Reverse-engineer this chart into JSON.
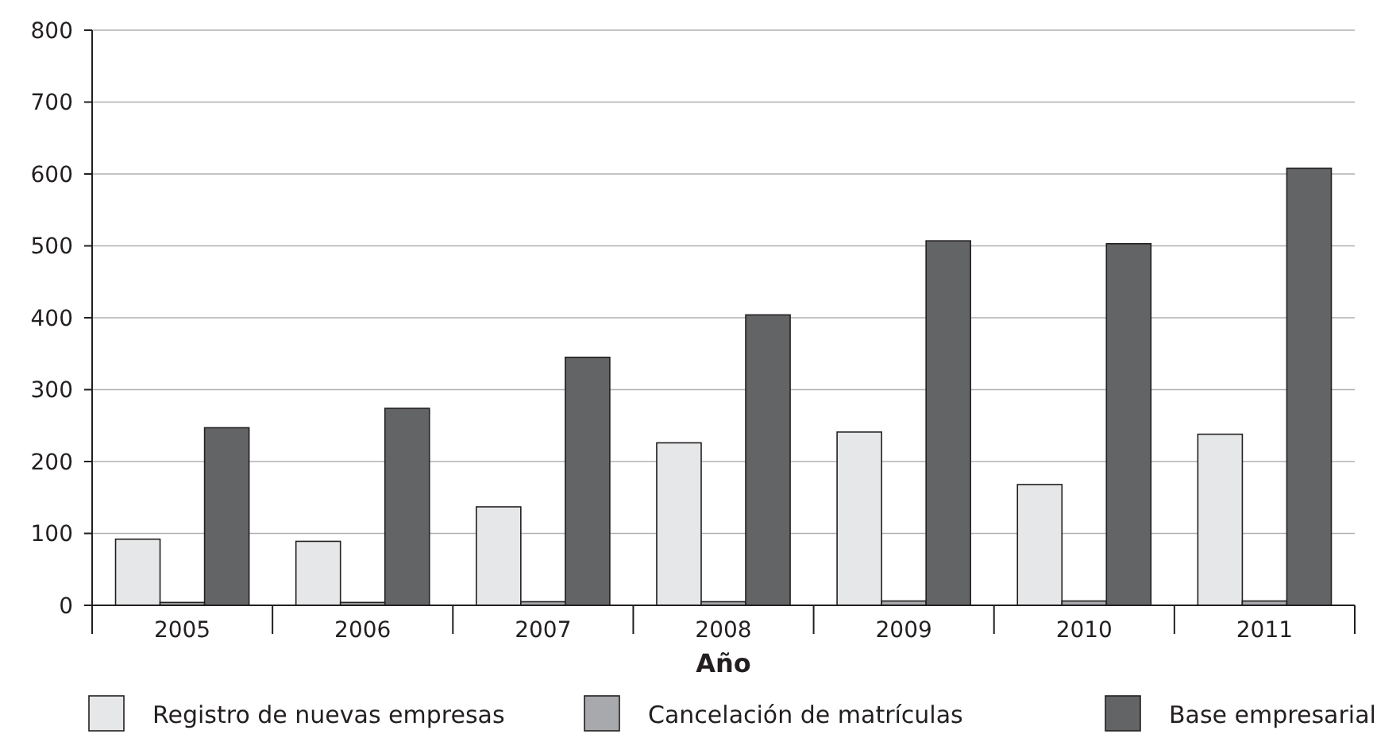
{
  "chart_data": {
    "type": "bar",
    "xlabel": "Año",
    "categories": [
      "2005",
      "2006",
      "2007",
      "2008",
      "2009",
      "2010",
      "2011"
    ],
    "series": [
      {
        "name": "Registro de nuevas empresas",
        "color": "#e6e7e8",
        "values": [
          92,
          89,
          137,
          226,
          241,
          168,
          238
        ]
      },
      {
        "name": "Cancelación de matrículas",
        "color": "#a7a9ac",
        "values": [
          4,
          4,
          5,
          5,
          6,
          6,
          6
        ]
      },
      {
        "name": "Base empresarial",
        "color": "#636466",
        "values": [
          247,
          274,
          345,
          404,
          507,
          503,
          608
        ]
      }
    ],
    "ylim": [
      0,
      800
    ],
    "yticks": [
      0,
      100,
      200,
      300,
      400,
      500,
      600,
      700,
      800
    ],
    "grid": "y",
    "legend": "bottom"
  }
}
